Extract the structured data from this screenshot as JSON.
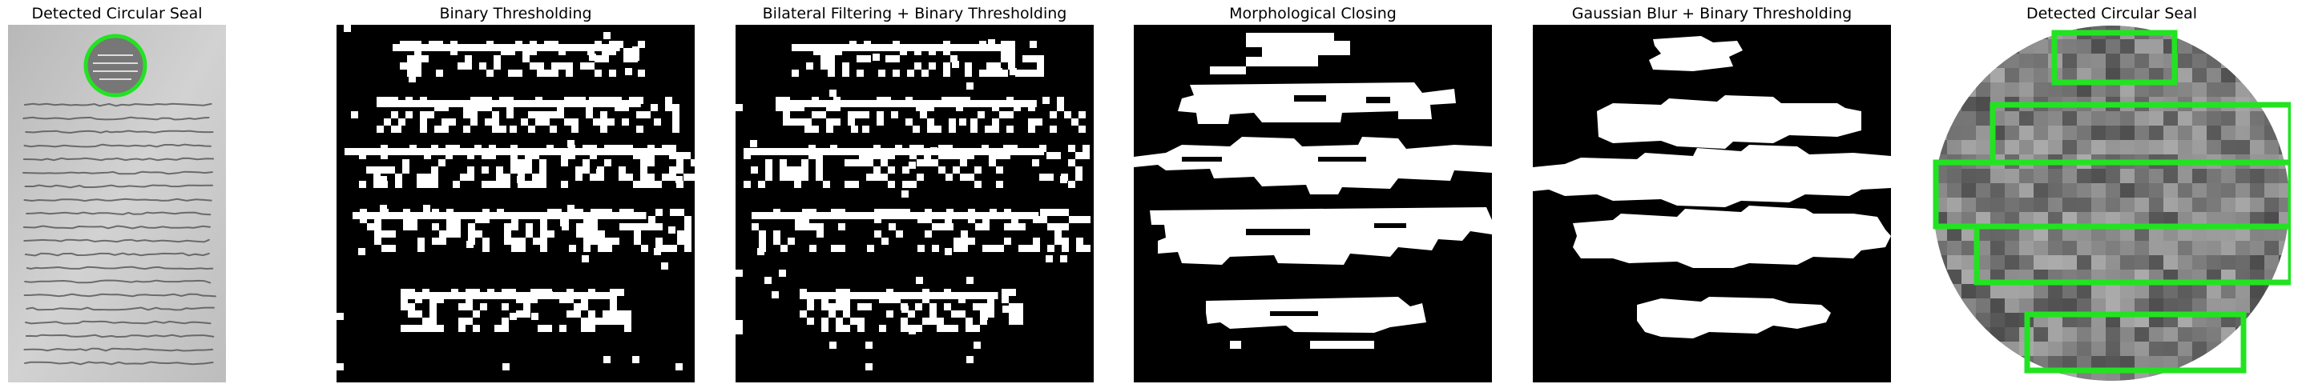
{
  "panels": [
    {
      "title": "Detected Circular Seal"
    },
    {
      "title": "Binary Thresholding"
    },
    {
      "title": "Bilateral Filtering + Binary Thresholding"
    },
    {
      "title": "Morphological Closing"
    },
    {
      "title": "Gaussian Blur + Binary Thresholding"
    },
    {
      "title": "Detected Circular Seal"
    }
  ],
  "colors": {
    "detection": "#22e322",
    "binary_fg": "#ffffff",
    "binary_bg": "#000000",
    "paper": "#c9c9c9",
    "ink": "#555555"
  }
}
